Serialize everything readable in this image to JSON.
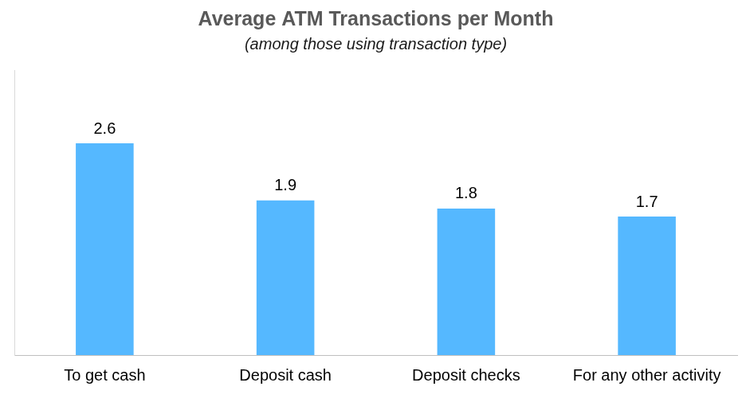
{
  "chart_data": {
    "type": "bar",
    "title": "Average ATM Transactions per Month",
    "subtitle": "(among those using transaction type)",
    "categories": [
      "To get cash",
      "Deposit cash",
      "Deposit checks",
      "For any other activity"
    ],
    "values": [
      2.6,
      1.9,
      1.8,
      1.7
    ],
    "color": "#55b8ff",
    "ylim": [
      0,
      3.5
    ],
    "grid": false,
    "data_labels": true,
    "tick_labels": "x"
  }
}
